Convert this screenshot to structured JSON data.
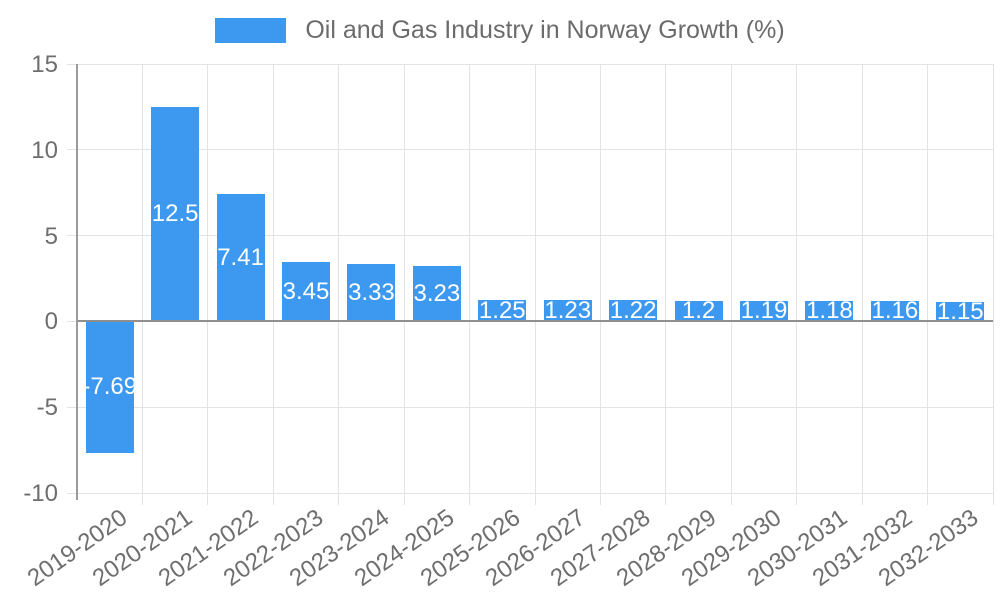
{
  "chart_data": {
    "type": "bar",
    "title": "Oil and Gas Industry in Norway Growth (%)",
    "categories": [
      "2019-2020",
      "2020-2021",
      "2021-2022",
      "2022-2023",
      "2023-2024",
      "2024-2025",
      "2025-2026",
      "2026-2027",
      "2027-2028",
      "2028-2029",
      "2029-2030",
      "2030-2031",
      "2031-2032",
      "2032-2033"
    ],
    "values": [
      -7.69,
      12.5,
      7.41,
      3.45,
      3.33,
      3.23,
      1.25,
      1.23,
      1.22,
      1.2,
      1.19,
      1.18,
      1.16,
      1.15
    ],
    "value_labels": [
      "-7.69",
      "12.5",
      "7.41",
      "3.45",
      "3.33",
      "3.23",
      "1.25",
      "1.23",
      "1.22",
      "1.2",
      "1.19",
      "1.18",
      "1.16",
      "1.15"
    ],
    "xlabel": "",
    "ylabel": "",
    "ylim": [
      -10,
      15
    ],
    "yticks": [
      15,
      10,
      5,
      0,
      -5,
      -10
    ],
    "grid": true,
    "legend_position": "top"
  },
  "colors": {
    "bar": "#3d99f0",
    "grid": "#e3e3e3",
    "axis_line": "#9b9b9b",
    "zero_line": "#8f8f8f",
    "text": "#6e6e6e",
    "title_text": "#6b6b6b",
    "value_label": "#ffffff",
    "background": "#ffffff"
  }
}
